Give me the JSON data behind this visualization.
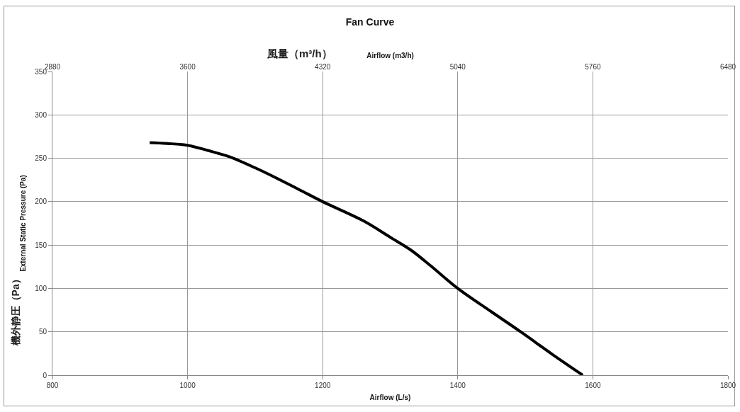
{
  "chart_data": {
    "type": "line",
    "title": "Fan Curve",
    "xlabel": "Airflow (L/s)",
    "ylabel": "External Static Pressure (Pa)",
    "x2label": "Airflow (m3/h)",
    "annotations": [
      "風量（m³/h）",
      "機外静圧（Pa）"
    ],
    "x": [
      944,
      970,
      1000,
      1030,
      1061,
      1100,
      1132,
      1165,
      1200,
      1260,
      1300,
      1331,
      1360,
      1400,
      1450,
      1495,
      1540,
      1585
    ],
    "series": [
      {
        "color": "#000000",
        "values": [
          268,
          267,
          265,
          259,
          252,
          239,
          227,
          214,
          200,
          178,
          159,
          144,
          126,
          100,
          73,
          49,
          24,
          0
        ]
      }
    ],
    "xlim": [
      800,
      1800
    ],
    "xticks": [
      800,
      1000,
      1200,
      1400,
      1600,
      1800
    ],
    "x2lim": [
      2880,
      6480
    ],
    "x2ticks": [
      2880,
      3600,
      4320,
      5040,
      5760,
      6480
    ],
    "ylim": [
      0,
      350
    ],
    "yticks": [
      0,
      50,
      100,
      150,
      200,
      250,
      300,
      350
    ],
    "grid": true,
    "marker": "none",
    "line_style": "solid"
  }
}
